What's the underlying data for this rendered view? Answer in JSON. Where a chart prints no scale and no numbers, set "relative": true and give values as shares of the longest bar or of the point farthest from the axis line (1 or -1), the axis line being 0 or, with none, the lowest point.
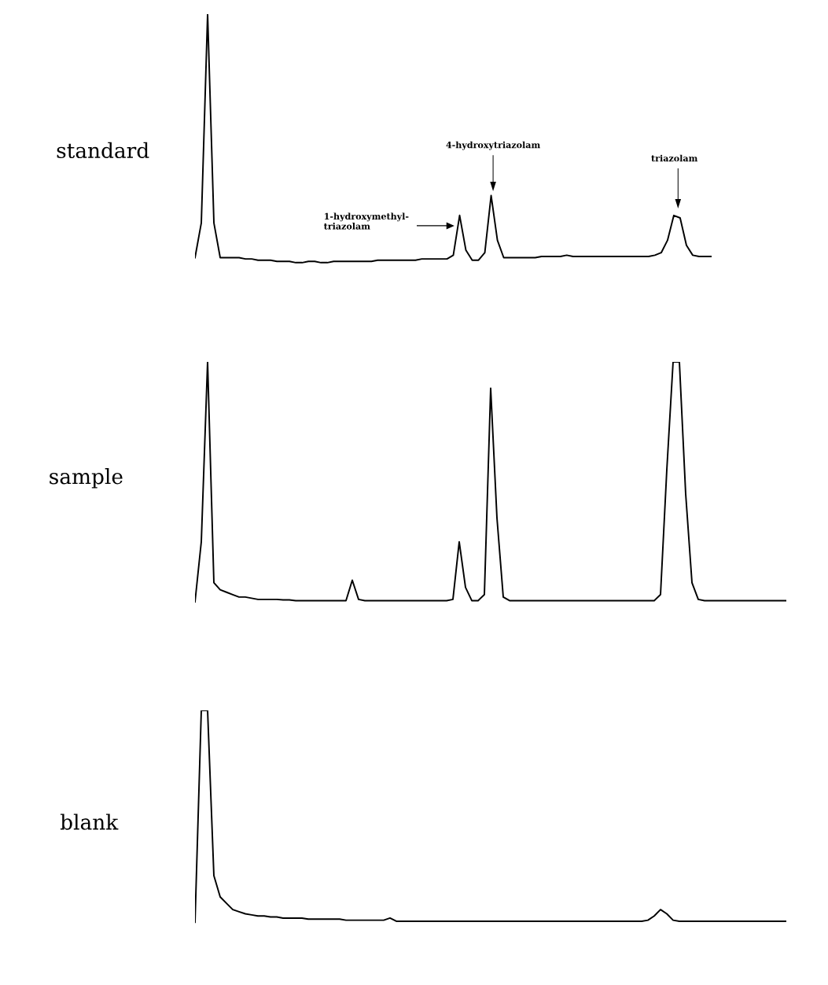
{
  "chart_data": [
    {
      "type": "line",
      "relative": true,
      "ylabel": "standard",
      "categories": [
        null,
        null,
        null,
        null,
        null,
        null,
        null,
        null,
        null,
        null,
        null,
        null,
        null,
        null,
        null,
        null,
        null,
        null,
        null,
        null,
        null,
        null,
        null,
        null,
        null,
        null,
        null,
        null,
        null,
        null,
        null,
        null,
        null,
        null,
        null,
        null,
        null,
        null,
        null,
        null,
        null,
        null,
        null,
        null,
        null,
        null,
        null,
        null,
        null,
        null,
        null,
        null,
        null,
        null,
        null,
        null,
        null,
        null,
        null,
        null,
        null,
        null,
        null,
        null,
        null,
        null,
        null,
        null,
        null,
        null,
        null,
        null,
        null,
        null,
        null,
        null,
        null,
        null,
        null,
        null,
        null,
        null,
        null
      ],
      "series": [
        {
          "color": "#000000",
          "values": [
            0.02,
            0.16,
            1.0,
            0.16,
            0.02,
            0.02,
            0.02,
            0.02,
            0.015,
            0.015,
            0.01,
            0.01,
            0.01,
            0.005,
            0.005,
            0.005,
            0.0,
            0.0,
            0.005,
            0.005,
            0.0,
            0.0,
            0.005,
            0.005,
            0.005,
            0.005,
            0.005,
            0.005,
            0.005,
            0.01,
            0.01,
            0.01,
            0.01,
            0.01,
            0.01,
            0.01,
            0.015,
            0.015,
            0.015,
            0.015,
            0.015,
            0.03,
            0.19,
            0.05,
            0.01,
            0.01,
            0.04,
            0.27,
            0.09,
            0.02,
            0.02,
            0.02,
            0.02,
            0.02,
            0.02,
            0.025,
            0.025,
            0.025,
            0.025,
            0.03,
            0.025,
            0.025,
            0.025,
            0.025,
            0.025,
            0.025,
            0.025,
            0.025,
            0.025,
            0.025,
            0.025,
            0.025,
            0.025,
            0.03,
            0.04,
            0.09,
            0.19,
            0.18,
            0.07,
            0.03,
            0.025,
            0.025,
            0.025
          ]
        }
      ],
      "annotations": [
        "1-hydroxymethyl-\ntriazolam",
        "4-hydroxytriazolam",
        "triazolam"
      ]
    },
    {
      "type": "line",
      "relative": true,
      "ylabel": "sample",
      "categories": [
        null,
        null,
        null,
        null,
        null,
        null,
        null,
        null,
        null,
        null,
        null,
        null,
        null,
        null,
        null,
        null,
        null,
        null,
        null,
        null,
        null,
        null,
        null,
        null,
        null,
        null,
        null,
        null,
        null,
        null,
        null,
        null,
        null,
        null,
        null,
        null,
        null,
        null,
        null,
        null,
        null,
        null,
        null,
        null,
        null,
        null,
        null,
        null,
        null,
        null,
        null,
        null,
        null,
        null,
        null,
        null,
        null,
        null,
        null,
        null,
        null,
        null,
        null,
        null,
        null,
        null,
        null,
        null,
        null,
        null,
        null,
        null,
        null,
        null,
        null,
        null,
        null,
        null,
        null,
        null,
        null,
        null,
        null,
        null,
        null,
        null,
        null,
        null,
        null,
        null,
        null,
        null,
        null,
        null,
        null
      ],
      "series": [
        {
          "color": "#000000",
          "values": [
            0.0,
            0.25,
            1.0,
            0.08,
            0.05,
            0.04,
            0.03,
            0.02,
            0.02,
            0.015,
            0.01,
            0.01,
            0.01,
            0.01,
            0.008,
            0.008,
            0.005,
            0.005,
            0.005,
            0.005,
            0.005,
            0.005,
            0.005,
            0.005,
            0.005,
            0.09,
            0.01,
            0.005,
            0.005,
            0.005,
            0.005,
            0.005,
            0.005,
            0.005,
            0.005,
            0.005,
            0.005,
            0.005,
            0.005,
            0.005,
            0.005,
            0.01,
            0.25,
            0.06,
            0.005,
            0.005,
            0.03,
            0.89,
            0.35,
            0.02,
            0.005,
            0.005,
            0.005,
            0.005,
            0.005,
            0.005,
            0.005,
            0.005,
            0.005,
            0.005,
            0.005,
            0.005,
            0.005,
            0.005,
            0.005,
            0.005,
            0.005,
            0.005,
            0.005,
            0.005,
            0.005,
            0.005,
            0.005,
            0.005,
            0.03,
            0.55,
            1.0,
            1.0,
            0.45,
            0.08,
            0.01,
            0.005,
            0.005,
            0.005,
            0.005,
            0.005,
            0.005,
            0.005,
            0.005,
            0.005,
            0.005,
            0.005,
            0.005,
            0.005,
            0.005
          ]
        }
      ]
    },
    {
      "type": "line",
      "relative": true,
      "ylabel": "blank",
      "categories": [
        null,
        null,
        null,
        null,
        null,
        null,
        null,
        null,
        null,
        null,
        null,
        null,
        null,
        null,
        null,
        null,
        null,
        null,
        null,
        null,
        null,
        null,
        null,
        null,
        null,
        null,
        null,
        null,
        null,
        null,
        null,
        null,
        null,
        null,
        null,
        null,
        null,
        null,
        null,
        null,
        null,
        null,
        null,
        null,
        null,
        null,
        null,
        null,
        null,
        null,
        null,
        null,
        null,
        null,
        null,
        null,
        null,
        null,
        null,
        null,
        null,
        null,
        null,
        null,
        null,
        null,
        null,
        null,
        null,
        null,
        null,
        null,
        null,
        null,
        null,
        null,
        null,
        null,
        null,
        null,
        null,
        null,
        null,
        null,
        null,
        null,
        null,
        null,
        null,
        null,
        null,
        null,
        null,
        null,
        null
      ],
      "series": [
        {
          "color": "#000000",
          "values": [
            0.0,
            1.0,
            1.0,
            0.22,
            0.12,
            0.09,
            0.06,
            0.05,
            0.04,
            0.035,
            0.03,
            0.03,
            0.025,
            0.025,
            0.02,
            0.02,
            0.02,
            0.02,
            0.015,
            0.015,
            0.015,
            0.015,
            0.015,
            0.015,
            0.01,
            0.01,
            0.01,
            0.01,
            0.01,
            0.01,
            0.01,
            0.02,
            0.005,
            0.005,
            0.005,
            0.005,
            0.005,
            0.005,
            0.005,
            0.005,
            0.005,
            0.005,
            0.005,
            0.005,
            0.005,
            0.005,
            0.005,
            0.005,
            0.005,
            0.005,
            0.005,
            0.005,
            0.005,
            0.005,
            0.005,
            0.005,
            0.005,
            0.005,
            0.005,
            0.005,
            0.005,
            0.005,
            0.005,
            0.005,
            0.005,
            0.005,
            0.005,
            0.005,
            0.005,
            0.005,
            0.005,
            0.005,
            0.01,
            0.03,
            0.06,
            0.04,
            0.01,
            0.005,
            0.005,
            0.005,
            0.005,
            0.005,
            0.005,
            0.005,
            0.005,
            0.005,
            0.005,
            0.005,
            0.005,
            0.005,
            0.005,
            0.005,
            0.005,
            0.005,
            0.005
          ]
        }
      ]
    }
  ]
}
